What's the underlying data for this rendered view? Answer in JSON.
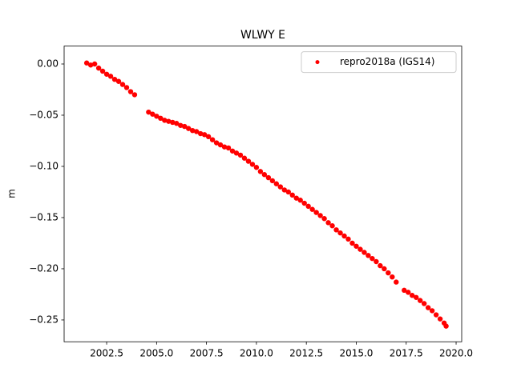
{
  "chart_data": {
    "type": "scatter",
    "title": "WLWY E",
    "y_label": "m",
    "legend": "upper right",
    "series": [
      {
        "name": "repro2018a (IGS14)",
        "color": "#ff0000",
        "x": [
          2001.5,
          2001.7,
          2001.9,
          2002.1,
          2002.3,
          2002.5,
          2002.7,
          2002.9,
          2003.1,
          2003.3,
          2003.5,
          2003.7,
          2003.9,
          2004.6,
          2004.8,
          2005.0,
          2005.2,
          2005.4,
          2005.6,
          2005.8,
          2006.0,
          2006.2,
          2006.4,
          2006.6,
          2006.8,
          2007.0,
          2007.2,
          2007.4,
          2007.6,
          2007.8,
          2008.0,
          2008.2,
          2008.4,
          2008.6,
          2008.8,
          2009.0,
          2009.2,
          2009.4,
          2009.6,
          2009.8,
          2010.0,
          2010.2,
          2010.4,
          2010.6,
          2010.8,
          2011.0,
          2011.2,
          2011.4,
          2011.6,
          2011.8,
          2012.0,
          2012.2,
          2012.4,
          2012.6,
          2012.8,
          2013.0,
          2013.2,
          2013.4,
          2013.6,
          2013.8,
          2014.0,
          2014.2,
          2014.4,
          2014.6,
          2014.8,
          2015.0,
          2015.2,
          2015.4,
          2015.6,
          2015.8,
          2016.0,
          2016.2,
          2016.4,
          2016.6,
          2016.8,
          2017.0,
          2017.4,
          2017.6,
          2017.8,
          2018.0,
          2018.2,
          2018.4,
          2018.6,
          2018.8,
          2019.0,
          2019.2,
          2019.4,
          2019.5
        ],
        "values": [
          0.001,
          -0.001,
          0.0,
          -0.004,
          -0.007,
          -0.01,
          -0.012,
          -0.015,
          -0.017,
          -0.02,
          -0.023,
          -0.027,
          -0.03,
          -0.047,
          -0.049,
          -0.051,
          -0.053,
          -0.055,
          -0.056,
          -0.057,
          -0.058,
          -0.06,
          -0.061,
          -0.063,
          -0.065,
          -0.066,
          -0.068,
          -0.069,
          -0.071,
          -0.074,
          -0.077,
          -0.079,
          -0.081,
          -0.082,
          -0.085,
          -0.087,
          -0.089,
          -0.092,
          -0.095,
          -0.098,
          -0.101,
          -0.105,
          -0.108,
          -0.111,
          -0.114,
          -0.117,
          -0.12,
          -0.123,
          -0.125,
          -0.128,
          -0.131,
          -0.133,
          -0.136,
          -0.139,
          -0.142,
          -0.145,
          -0.148,
          -0.151,
          -0.155,
          -0.158,
          -0.162,
          -0.165,
          -0.168,
          -0.171,
          -0.175,
          -0.178,
          -0.181,
          -0.184,
          -0.187,
          -0.19,
          -0.193,
          -0.197,
          -0.2,
          -0.204,
          -0.208,
          -0.213,
          -0.221,
          -0.223,
          -0.226,
          -0.228,
          -0.231,
          -0.234,
          -0.238,
          -0.241,
          -0.245,
          -0.249,
          -0.253,
          -0.256
        ]
      }
    ],
    "xlim": [
      2000.37,
      2020.28
    ],
    "ylim": [
      -0.2713,
      0.0175
    ],
    "xticks": [
      {
        "value": 2002.5,
        "label": "2002.5"
      },
      {
        "value": 2005.0,
        "label": "2005.0"
      },
      {
        "value": 2007.5,
        "label": "2007.5"
      },
      {
        "value": 2010.0,
        "label": "2010.0"
      },
      {
        "value": 2012.5,
        "label": "2012.5"
      },
      {
        "value": 2015.0,
        "label": "2015.0"
      },
      {
        "value": 2017.5,
        "label": "2017.5"
      },
      {
        "value": 2020.0,
        "label": "2020.0"
      }
    ],
    "yticks": [
      {
        "value": 0,
        "label": "0.00"
      },
      {
        "value": -0.05,
        "label": "−0.05"
      },
      {
        "value": -0.1,
        "label": "−0.10"
      },
      {
        "value": -0.15,
        "label": "−0.15"
      },
      {
        "value": -0.2,
        "label": "−0.20"
      },
      {
        "value": -0.25,
        "label": "−0.25"
      }
    ]
  }
}
